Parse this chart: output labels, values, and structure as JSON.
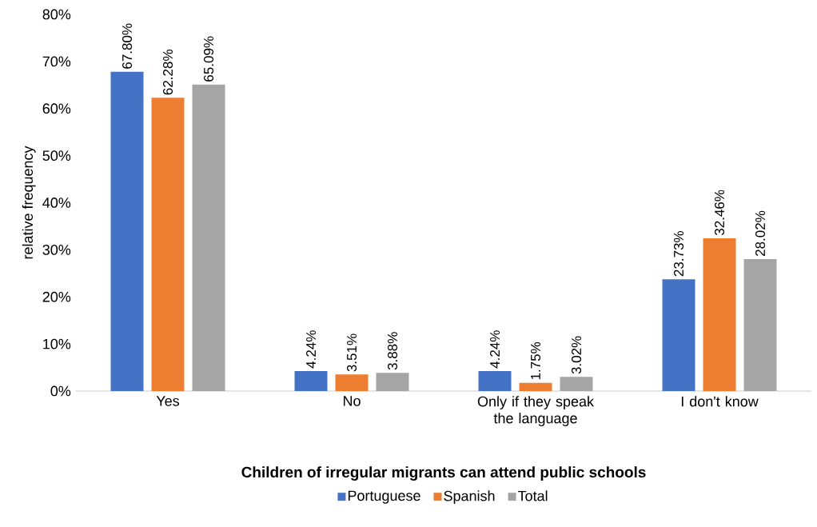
{
  "chart_data": {
    "type": "bar",
    "xlabel": "Children of irregular migrants can attend public schools",
    "ylabel": "relative frequency",
    "categories": [
      "Yes",
      "No",
      "Only if they speak the language",
      "I don't know"
    ],
    "series": [
      {
        "name": "Portuguese",
        "color": "#4472c4",
        "values": [
          67.8,
          4.24,
          4.24,
          23.73
        ],
        "value_labels": [
          "67.80%",
          "4.24%",
          "4.24%",
          "23.73%"
        ]
      },
      {
        "name": "Spanish",
        "color": "#ed7d31",
        "values": [
          62.28,
          3.51,
          1.75,
          32.46
        ],
        "value_labels": [
          "62.28%",
          "3.51%",
          "1.75%",
          "32.46%"
        ]
      },
      {
        "name": "Total",
        "color": "#a5a5a5",
        "values": [
          65.09,
          3.88,
          3.02,
          28.02
        ],
        "value_labels": [
          "65.09%",
          "3.88%",
          "3.02%",
          "28.02%"
        ]
      }
    ],
    "ylim": [
      0,
      80
    ],
    "yticks": [
      {
        "value": 0,
        "label": "0%"
      },
      {
        "value": 10,
        "label": "10%"
      },
      {
        "value": 20,
        "label": "20%"
      },
      {
        "value": 30,
        "label": "30%"
      },
      {
        "value": 40,
        "label": "40%"
      },
      {
        "value": 50,
        "label": "50%"
      },
      {
        "value": 60,
        "label": "60%"
      },
      {
        "value": 70,
        "label": "70%"
      },
      {
        "value": 80,
        "label": "80%"
      }
    ],
    "grid": false,
    "legend": "bottom"
  }
}
